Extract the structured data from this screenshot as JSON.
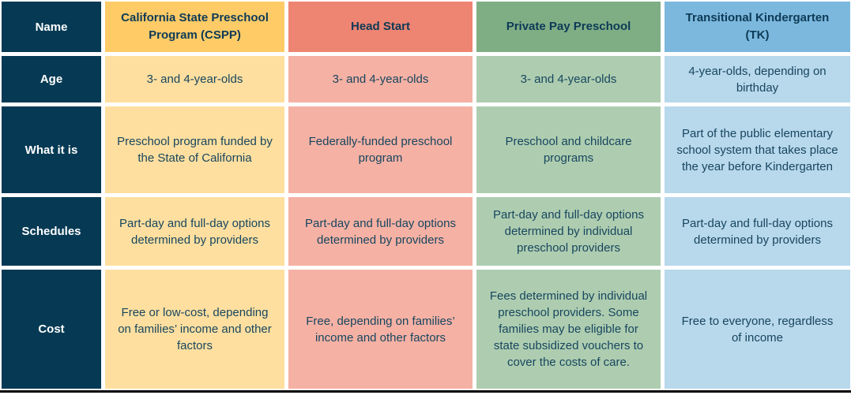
{
  "colors": {
    "row_label_bg": "#063a54",
    "row_label_text": "#ffffff",
    "header_text": "#0d3a56",
    "body_text": "#17465f",
    "bottom_rule": "#000000",
    "background": "#ffffff"
  },
  "table": {
    "row_labels": {
      "name": "Name",
      "age": "Age",
      "what_it_is": "What it is",
      "schedules": "Schedules",
      "cost": "Cost"
    },
    "programs": [
      {
        "name": "California State Preschool Program (CSPP)",
        "header_bg": "#fecb67",
        "body_bg": "#ffdf9f",
        "age": "3- and 4-year-olds",
        "what_it_is": "Preschool program funded by the State of California",
        "schedules": "Part-day and full-day options determined by providers",
        "cost": "Free or low-cost, depending on families’ income and other factors"
      },
      {
        "name": "Head Start",
        "header_bg": "#ee8472",
        "body_bg": "#f5b1a4",
        "age": "3- and 4-year-olds",
        "what_it_is": "Federally-funded preschool program",
        "schedules": "Part-day and full-day options determined by providers",
        "cost": "Free, depending on families’ income and other factors"
      },
      {
        "name": "Private Pay Preschool",
        "header_bg": "#7fae85",
        "body_bg": "#aecdb0",
        "age": "3- and 4-year-olds",
        "what_it_is": "Preschool and childcare programs",
        "schedules": "Part-day and full-day options determined by individual preschool providers",
        "cost": "Fees determined by individual preschool providers. Some families may be eligible for state subsidized vouchers to cover the costs of care."
      },
      {
        "name": "Transitional Kindergarten (TK)",
        "header_bg": "#7cb8dd",
        "body_bg": "#b8d8ec",
        "age": "4-year-olds, depending on birthday",
        "what_it_is": "Part of the public elementary school system that takes place the year before Kindergarten",
        "schedules": "Part-day and full-day options determined by providers",
        "cost": "Free to everyone, regardless of income"
      }
    ]
  }
}
